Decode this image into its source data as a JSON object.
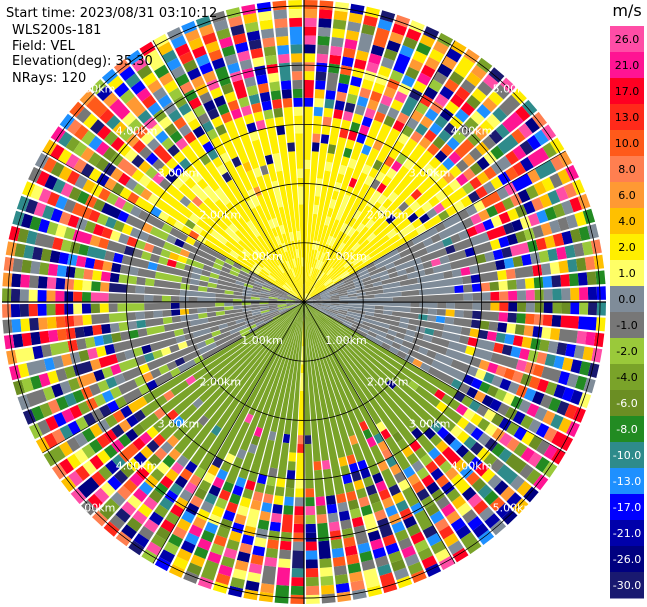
{
  "header": {
    "start_time": "Start time: 2023/08/31 03:10:12",
    "instrument": "WLS200s-181",
    "field": "Field: VEL",
    "elevation": "Elevation(deg): 35.30",
    "nrays": "NRays: 120"
  },
  "colorbar": {
    "unit": "m/s",
    "ticks": [
      "26.0",
      "21.0",
      "17.0",
      "13.0",
      "10.0",
      "8.0",
      "6.0",
      "4.0",
      "2.0",
      "1.0",
      "0.0",
      "-1.0",
      "-2.0",
      "-4.0",
      "-6.0",
      "-8.0",
      "-10.0",
      "-13.0",
      "-17.0",
      "-21.0",
      "-26.0",
      "-30.0"
    ],
    "colors": [
      "#ff4da6",
      "#ff1493",
      "#ff0022",
      "#ff2a1a",
      "#ff5a1a",
      "#ff7f50",
      "#ff9933",
      "#ffc000",
      "#ffee00",
      "#ffff66",
      "#7f8c99",
      "#777777",
      "#9ac93a",
      "#7aa329",
      "#6b8e23",
      "#228b22",
      "#2e8b8b",
      "#1e90ff",
      "#0000ff",
      "#0000aa",
      "#000080",
      "#191970"
    ]
  },
  "chart_data": {
    "type": "ppi",
    "field": "VEL",
    "units": "m/s",
    "range_rings_km": [
      1.0,
      2.0,
      3.0,
      4.0,
      5.0
    ],
    "ring_labels": [
      "1.00km",
      "2.00km",
      "3.00km",
      "4.00km",
      "5.00km"
    ],
    "max_range_km": 5.1,
    "spoke_angles_deg": [
      0,
      30,
      60,
      90,
      120,
      150,
      180,
      210,
      240,
      270,
      300,
      330
    ],
    "colorbar_range": [
      -30.0,
      26.0
    ],
    "sectors": [
      {
        "name": "yellow-approach",
        "azimuth_from_deg": 300,
        "azimuth_to_deg": 60,
        "velocity": 2.5
      },
      {
        "name": "gray-near-zero",
        "azimuth_from_deg": 60,
        "azimuth_to_deg": 120,
        "velocity": 0.0
      },
      {
        "name": "green-receding",
        "azimuth_from_deg": 120,
        "azimuth_to_deg": 240,
        "velocity": -3.0
      },
      {
        "name": "gray-near-zero-west",
        "azimuth_from_deg": 240,
        "azimuth_to_deg": 300,
        "velocity": -0.5
      }
    ],
    "noise_start_km": 3.2
  }
}
